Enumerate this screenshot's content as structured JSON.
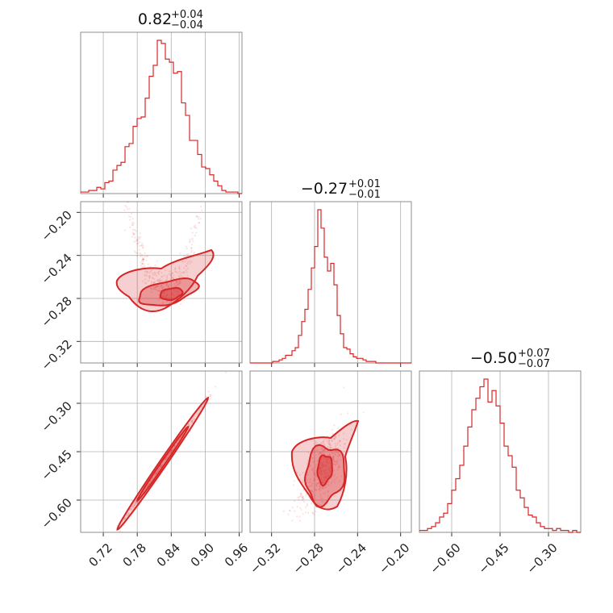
{
  "chart_data": {
    "type": "corner",
    "color": "#d62728",
    "parameters": [
      {
        "id": "p0",
        "title": {
          "median": "0.82",
          "plus": "+0.04",
          "minus": "−0.04"
        },
        "range": [
          0.68,
          0.965
        ],
        "ticks": [
          "0.72",
          "0.78",
          "0.84",
          "0.90",
          "0.96"
        ],
        "tick_values": [
          0.72,
          0.78,
          0.84,
          0.9,
          0.96
        ],
        "hist_bins": [
          0.68,
          0.965,
          40
        ],
        "hist_counts": [
          1,
          1,
          2,
          2,
          4,
          3,
          7,
          8,
          15,
          18,
          20,
          30,
          32,
          43,
          48,
          49,
          61,
          75,
          82,
          98,
          96,
          86,
          84,
          77,
          78,
          58,
          50,
          34,
          34,
          25,
          17,
          16,
          12,
          8,
          5,
          2,
          1,
          1,
          1,
          0
        ]
      },
      {
        "id": "p1",
        "title": {
          "median": "−0.27",
          "plus": "+0.01",
          "minus": "−0.01"
        },
        "range": [
          -0.34,
          -0.19
        ],
        "ticks": [
          "−0.32",
          "−0.28",
          "−0.24",
          "−0.20"
        ],
        "tick_values": [
          -0.32,
          -0.28,
          -0.24,
          -0.2
        ],
        "hist_bins": [
          -0.34,
          -0.19,
          50
        ],
        "hist_counts": [
          0,
          0,
          0,
          0,
          0,
          0,
          0,
          1,
          1,
          2,
          3,
          5,
          5,
          8,
          10,
          18,
          27,
          35,
          48,
          62,
          76,
          100,
          88,
          69,
          60,
          65,
          51,
          31,
          19,
          10,
          9,
          6,
          4,
          3,
          3,
          2,
          1,
          1,
          1,
          0,
          0,
          0,
          0,
          0,
          0,
          0,
          0,
          0,
          0,
          0
        ]
      },
      {
        "id": "p2",
        "title": {
          "median": "−0.50",
          "plus": "+0.07",
          "minus": "−0.07"
        },
        "range": [
          -0.7,
          -0.2
        ],
        "ticks": [
          "−0.60",
          "−0.45",
          "−0.30"
        ],
        "tick_values": [
          -0.6,
          -0.45,
          -0.3
        ],
        "hist_bins": [
          -0.7,
          -0.2,
          40
        ],
        "hist_counts": [
          1,
          1,
          2,
          3,
          5,
          8,
          10,
          15,
          22,
          28,
          35,
          45,
          55,
          64,
          70,
          76,
          80,
          68,
          74,
          66,
          57,
          45,
          40,
          34,
          22,
          18,
          13,
          9,
          8,
          5,
          3,
          2,
          2,
          1,
          2,
          1,
          1,
          0,
          1,
          0
        ]
      }
    ],
    "correlations": {
      "p1_vs_p0": {
        "shape": "crescent",
        "centre": [
          0.82,
          -0.272
        ],
        "spread": [
          0.04,
          0.009
        ]
      },
      "p2_vs_p0": {
        "shape": "linear",
        "slope": 2.55,
        "centre": [
          0.82,
          -0.5
        ]
      },
      "p2_vs_p1": {
        "shape": "blob",
        "centre": [
          -0.272,
          -0.5
        ],
        "spread": [
          0.009,
          0.05
        ]
      }
    },
    "grid": true
  }
}
